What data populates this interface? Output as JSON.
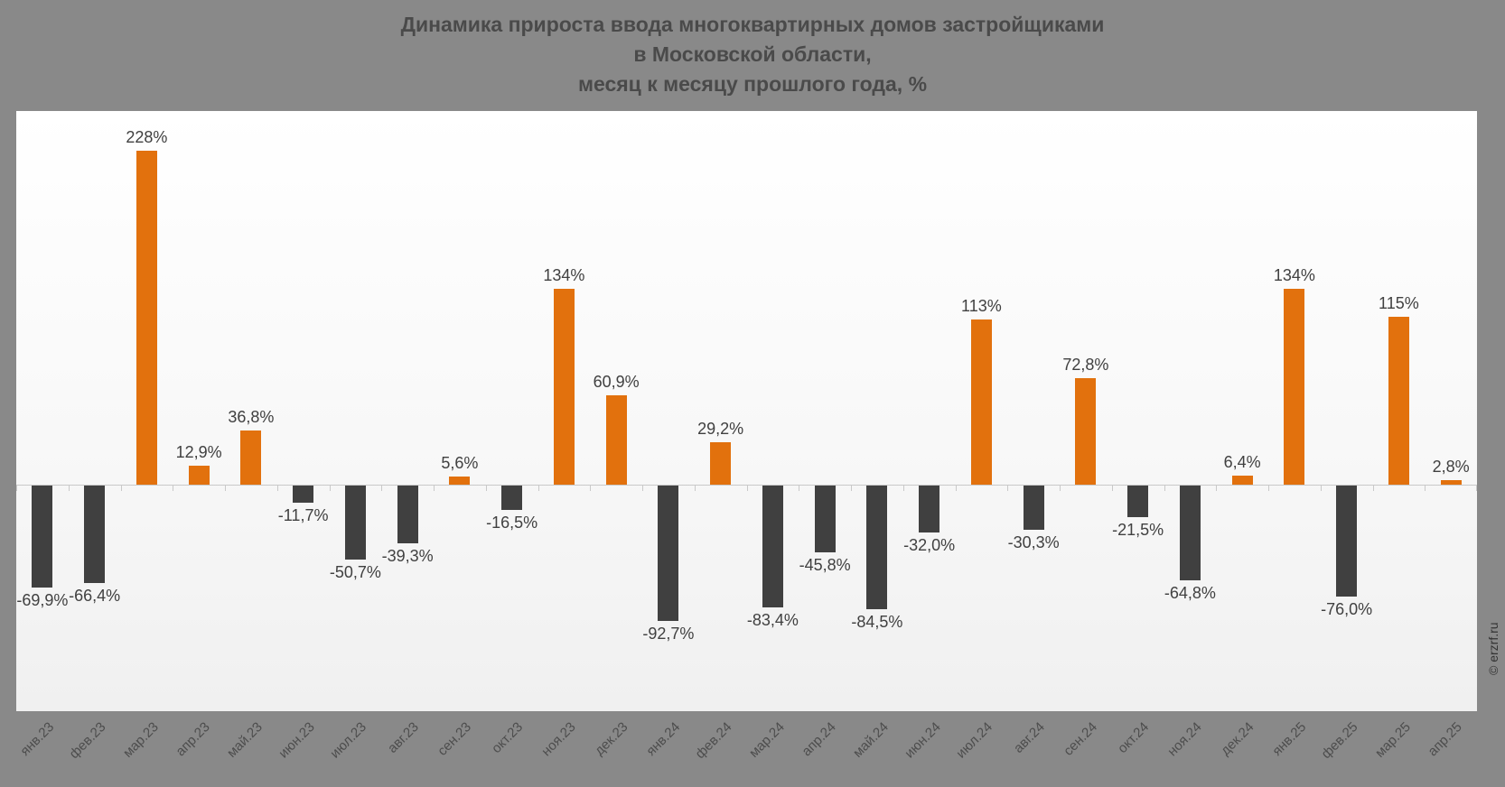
{
  "title": {
    "lines": [
      "Динамика прироста ввода многоквартирных домов застройщиками",
      "в Московской области,",
      "месяц к месяцу прошлого года, %"
    ]
  },
  "watermark": "© erzrf.ru",
  "colors": {
    "page_bg": "#898989",
    "plot_bg_top": "#ffffff",
    "plot_bg_bottom": "#f0f0f0",
    "positive_bar": "#e2710d",
    "negative_bar": "#404040",
    "axis": "#c9c9c9",
    "value_label": "#404040",
    "axis_label": "#4d4d4d",
    "title": "#4a4a4a"
  },
  "chart_data": {
    "type": "bar",
    "title": "Динамика прироста ввода многоквартирных домов застройщиками в Московской области, месяц к месяцу прошлого года, %",
    "xlabel": "",
    "ylabel": "%",
    "ylim": [
      -100,
      240
    ],
    "grid": false,
    "legend": false,
    "layout_hints": {
      "positive_color": "orange",
      "negative_color": "dark-gray",
      "value_labels": "outside bar ends",
      "x_tick_rotation": -45
    },
    "categories": [
      "янв.23",
      "фев.23",
      "мар.23",
      "апр.23",
      "май.23",
      "июн.23",
      "июл.23",
      "авг.23",
      "сен.23",
      "окт.23",
      "ноя.23",
      "дек.23",
      "янв.24",
      "фев.24",
      "мар.24",
      "апр.24",
      "май.24",
      "июн.24",
      "июл.24",
      "авг.24",
      "сен.24",
      "окт.24",
      "ноя.24",
      "дек.24",
      "янв.25",
      "фев.25",
      "мар.25",
      "апр.25"
    ],
    "values": [
      -69.9,
      -66.4,
      228,
      12.9,
      36.8,
      -11.7,
      -50.7,
      -39.3,
      5.6,
      -16.5,
      134,
      60.9,
      -92.7,
      29.2,
      -83.4,
      -45.8,
      -84.5,
      -32.0,
      113,
      -30.3,
      72.8,
      -21.5,
      -64.8,
      6.4,
      134,
      -76.0,
      115,
      2.8
    ],
    "labels": [
      "-69,9%",
      "-66,4%",
      "228%",
      "12,9%",
      "36,8%",
      "-11,7%",
      "-50,7%",
      "-39,3%",
      "5,6%",
      "-16,5%",
      "134%",
      "60,9%",
      "-92,7%",
      "29,2%",
      "-83,4%",
      "-45,8%",
      "-84,5%",
      "-32,0%",
      "113%",
      "-30,3%",
      "72,8%",
      "-21,5%",
      "-64,8%",
      "6,4%",
      "134%",
      "-76,0%",
      "115%",
      "2,8%"
    ]
  }
}
